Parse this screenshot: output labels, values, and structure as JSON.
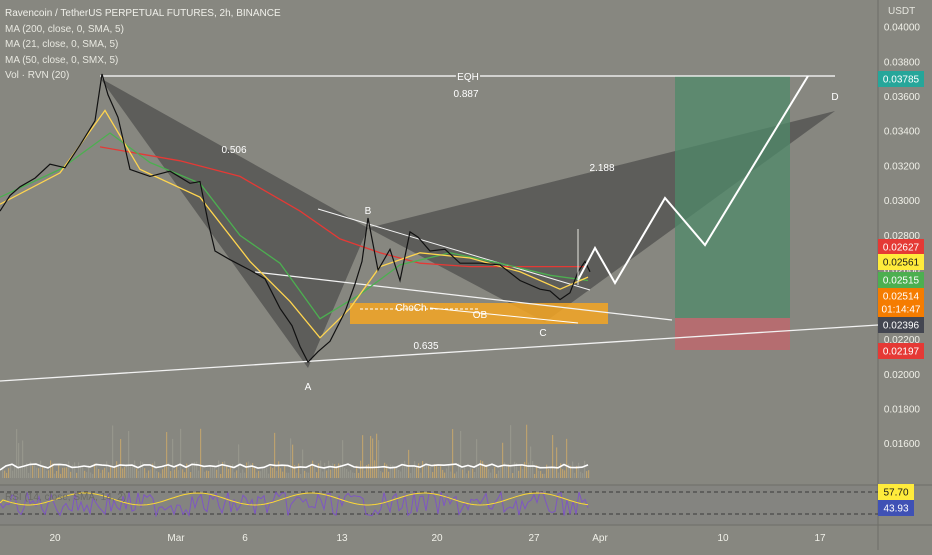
{
  "legend": {
    "title": "Ravencoin / TetherUS PERPETUAL FUTURES, 2h, BINANCE",
    "ma200": "MA (200, close, 0, SMA, 5)",
    "ma21": "MA (21, close, 0, SMA, 5)",
    "ma50": "MA (50, close, 0, SMX, 5)",
    "vol": "Vol · RVN (20)",
    "rsi": "RSI (14, close, SMA, 14, 2)"
  },
  "axis_unit": "USDT",
  "chart_data": {
    "type": "line",
    "title": "Ravencoin / TetherUS PERPETUAL FUTURES, 2h, BINANCE",
    "ylim": [
      0.0146,
      0.0411
    ],
    "y_ticks": [
      "0.04000",
      "0.03800",
      "0.03600",
      "0.03400",
      "0.03200",
      "0.03000",
      "0.02800",
      "0.02600",
      "0.02400",
      "0.02200",
      "0.02000",
      "0.01800",
      "0.01600"
    ],
    "x_ticks": [
      "20",
      "Mar",
      "6",
      "13",
      "20",
      "27",
      "Apr",
      "10",
      "17"
    ],
    "grid": false,
    "price_series": {
      "name": "RVNUSDT",
      "x": [
        0,
        10,
        20,
        35,
        50,
        65,
        80,
        95,
        102,
        108,
        118,
        130,
        150,
        170,
        190,
        200,
        208,
        215,
        230,
        250,
        265,
        280,
        292,
        300,
        308,
        318,
        330,
        345,
        355,
        362,
        368,
        378,
        390,
        400,
        410,
        418,
        430,
        445,
        460,
        480,
        500,
        520,
        540,
        550,
        560,
        570,
        578,
        585,
        590
      ],
      "y": [
        0.0294,
        0.0303,
        0.0308,
        0.0313,
        0.0321,
        0.0319,
        0.0332,
        0.0346,
        0.0373,
        0.0361,
        0.0348,
        0.0318,
        0.0314,
        0.0317,
        0.031,
        0.0311,
        0.0288,
        0.0271,
        0.0266,
        0.026,
        0.0255,
        0.0238,
        0.0228,
        0.0216,
        0.0207,
        0.0213,
        0.0219,
        0.0236,
        0.0252,
        0.0265,
        0.029,
        0.026,
        0.0272,
        0.0254,
        0.0282,
        0.0279,
        0.0271,
        0.0272,
        0.0264,
        0.0264,
        0.0263,
        0.0254,
        0.0249,
        0.0248,
        0.0243,
        0.0247,
        0.0259,
        0.0265,
        0.0259
      ]
    },
    "moving_averages": [
      {
        "color": "#e53935",
        "x": [
          100,
          180,
          240,
          300,
          340,
          380,
          420,
          470,
          530,
          585
        ],
        "y": [
          0.0331,
          0.0323,
          0.0314,
          0.0294,
          0.0278,
          0.027,
          0.0264,
          0.0262,
          0.0262,
          0.0262
        ]
      },
      {
        "color": "#4caf50",
        "x": [
          0,
          60,
          110,
          150,
          200,
          240,
          280,
          320,
          360,
          400,
          450,
          500,
          550,
          588
        ],
        "y": [
          0.0302,
          0.0318,
          0.0339,
          0.0322,
          0.031,
          0.028,
          0.0264,
          0.0232,
          0.0246,
          0.0263,
          0.027,
          0.0264,
          0.0257,
          0.0254
        ]
      },
      {
        "color": "#ffd54f",
        "x": [
          0,
          60,
          105,
          140,
          200,
          250,
          290,
          320,
          350,
          380,
          420,
          470,
          520,
          560,
          588
        ],
        "y": [
          0.0298,
          0.0316,
          0.0352,
          0.0318,
          0.0302,
          0.0265,
          0.0242,
          0.0221,
          0.0238,
          0.0262,
          0.027,
          0.0267,
          0.0259,
          0.0249,
          0.0256
        ]
      }
    ],
    "price_labels": [
      {
        "text": "0.03785",
        "value": 0.03785,
        "bg": "#26a69a"
      },
      {
        "text": "0.02627",
        "value": 0.02627,
        "bg": "#e53935"
      },
      {
        "text": "0.02561",
        "value": 0.02561,
        "bg": "#ffeb3b"
      },
      {
        "text": "0.02515",
        "value": 0.02515,
        "bg": "#4caf50"
      },
      {
        "text": "0.02514",
        "value": 0.02514,
        "bg": "#f57c00"
      },
      {
        "text": "01:14:47",
        "value": 0.02455,
        "bg": "#f57c00"
      },
      {
        "text": "0.02396",
        "value": 0.02396,
        "bg": "#434651"
      },
      {
        "text": "0.02197",
        "value": 0.02197,
        "bg": "#e53935"
      }
    ],
    "annotations": [
      "EQH",
      "0.887",
      "0.506",
      "2.188",
      "0.635",
      "ChoCh",
      "OB",
      "A",
      "B",
      "C",
      "D"
    ],
    "rsi": {
      "levels": [
        "57.70",
        "43.93"
      ],
      "level_colors": [
        "#ffeb3b",
        "#3f51b5"
      ]
    },
    "colors": {
      "background": "#878780",
      "target_zone": "#4f8a6a",
      "stop_zone": "#c0676b",
      "order_block": "#f5a623",
      "pattern": "#3a3a3a"
    }
  }
}
